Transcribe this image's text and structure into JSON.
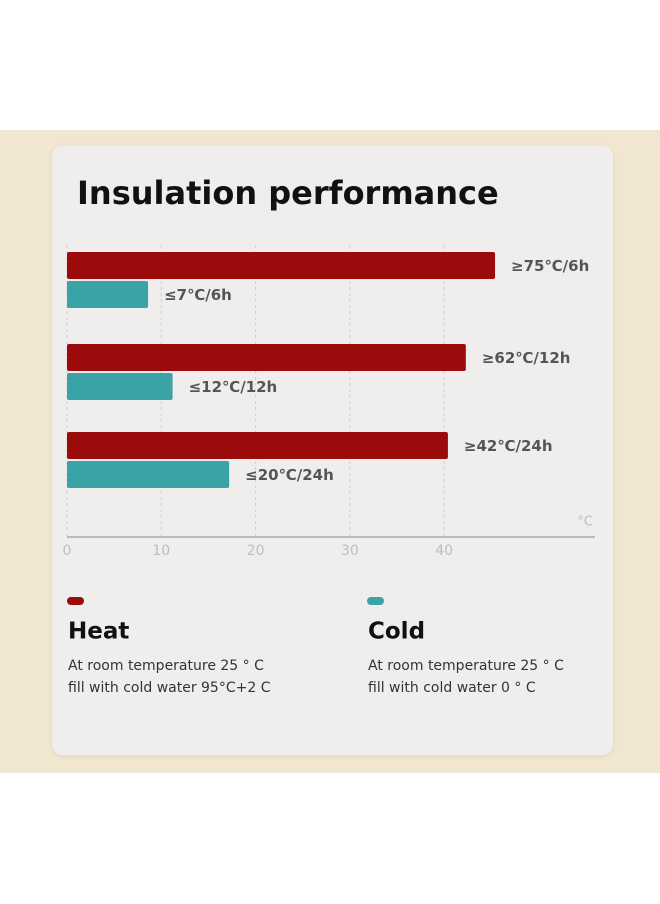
{
  "chart_data": {
    "type": "bar",
    "orientation": "horizontal",
    "title": "Insulation performance",
    "x_label": "°C",
    "xlim": [
      0,
      56
    ],
    "xticks": [
      0,
      10,
      20,
      30,
      40
    ],
    "grid": true,
    "series": [
      {
        "name": "Heat",
        "color": "#9b0b0b",
        "values": [
          45.4,
          42.3,
          40.4
        ],
        "labels": [
          "≥75℃/6h",
          "≥62℃/12h",
          "≥42℃/24h"
        ],
        "description": [
          "At room temperature 25 ° C",
          "fill with cold water 95°C+2 C"
        ]
      },
      {
        "name": "Cold",
        "color": "#3aa3a6",
        "values": [
          8.6,
          11.2,
          17.2
        ],
        "labels": [
          "≤7℃/6h",
          "≤12℃/12h",
          "≤20℃/24h"
        ],
        "description": [
          "At room temperature 25 ° C",
          "fill with cold water 0 ° C"
        ]
      }
    ]
  }
}
